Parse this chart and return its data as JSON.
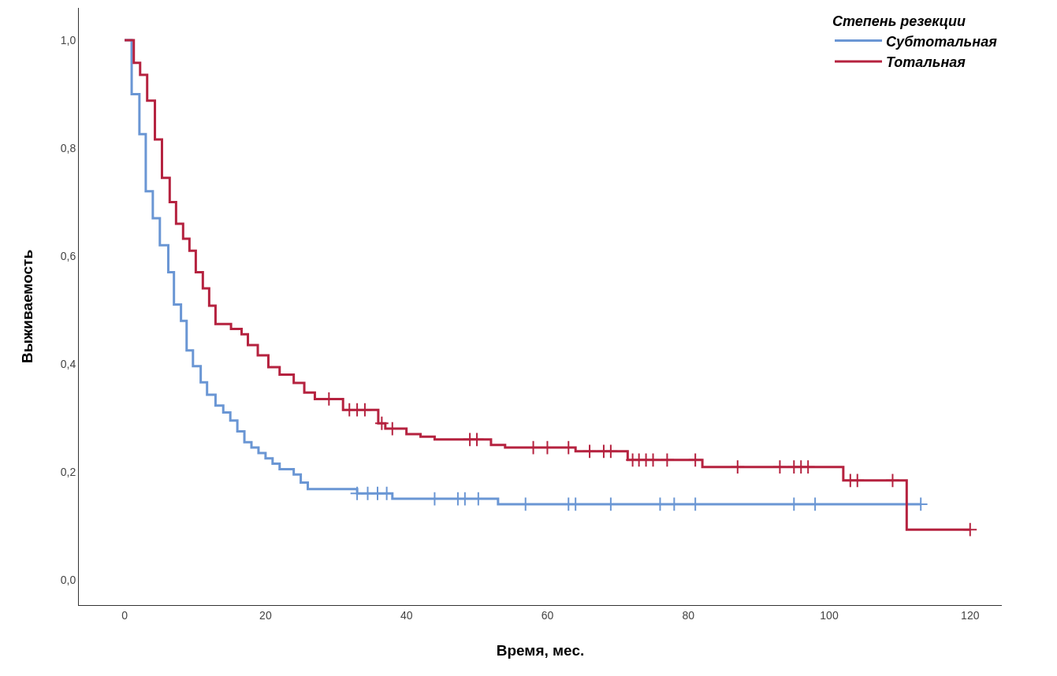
{
  "chart_data": {
    "type": "step",
    "xlabel": "Время, мес.",
    "ylabel": "Выживаемость",
    "legend_title": "Степень резекции",
    "legend": "top right",
    "grid": false,
    "line_style": "solid",
    "xlim": [
      -6.5,
      124.5
    ],
    "xticks": [
      0,
      20,
      40,
      60,
      80,
      100,
      120
    ],
    "ylim": [
      -0.047,
      1.06
    ],
    "yticks": [
      {
        "value": 0,
        "label": "0,0"
      },
      {
        "value": 0.2,
        "label": "0,2"
      },
      {
        "value": 0.4,
        "label": "0,4"
      },
      {
        "value": 0.6,
        "label": "0,6"
      },
      {
        "value": 0.8,
        "label": "0,8"
      },
      {
        "value": 1,
        "label": "1,0"
      }
    ],
    "series": [
      {
        "name": "Субтотальная",
        "color": "#6a96d4",
        "x": [
          0,
          1,
          2.1,
          3,
          4,
          5,
          6.2,
          7,
          8,
          8.8,
          9.7,
          10.8,
          11.7,
          12.9,
          14,
          15,
          16,
          17,
          18,
          19,
          20,
          21,
          22,
          24,
          25,
          26,
          33,
          38,
          53,
          113
        ],
        "values": [
          1,
          0.9,
          0.826,
          0.72,
          0.67,
          0.62,
          0.57,
          0.51,
          0.48,
          0.425,
          0.396,
          0.366,
          0.343,
          0.323,
          0.31,
          0.295,
          0.275,
          0.255,
          0.245,
          0.235,
          0.225,
          0.215,
          0.205,
          0.195,
          0.18,
          0.168,
          0.16,
          0.15,
          0.14,
          0.14
        ]
      },
      {
        "name": "Тотальная",
        "color": "#b5223f",
        "x": [
          0,
          1.3,
          2.2,
          3.2,
          4.3,
          5.3,
          6.4,
          7.3,
          8.3,
          9.2,
          10.1,
          11.1,
          12,
          12.9,
          15.1,
          16.6,
          17.5,
          18.9,
          20.4,
          22,
          24,
          25.5,
          27,
          31,
          36,
          37,
          40,
          42,
          44,
          52,
          54,
          64,
          71.4,
          82,
          102,
          111,
          120
        ],
        "values": [
          1,
          0.958,
          0.936,
          0.888,
          0.816,
          0.745,
          0.7,
          0.66,
          0.632,
          0.61,
          0.57,
          0.54,
          0.508,
          0.474,
          0.465,
          0.455,
          0.435,
          0.416,
          0.394,
          0.38,
          0.365,
          0.347,
          0.335,
          0.315,
          0.29,
          0.28,
          0.27,
          0.265,
          0.26,
          0.25,
          0.245,
          0.238,
          0.222,
          0.209,
          0.184,
          0.093,
          0.093
        ]
      },
      {
        "type": "scatter",
        "marker": "cross",
        "color": "#6a96d4",
        "x": [
          33,
          34.5,
          35.9,
          37.2,
          44,
          47.3,
          48.3,
          50.2,
          56.9,
          63,
          64,
          69,
          76,
          78,
          81,
          95,
          98,
          113
        ],
        "values": [
          0.16,
          0.16,
          0.16,
          0.16,
          0.15,
          0.15,
          0.15,
          0.15,
          0.14,
          0.14,
          0.14,
          0.14,
          0.14,
          0.14,
          0.14,
          0.14,
          0.14,
          0.14
        ]
      },
      {
        "type": "scatter",
        "marker": "cross",
        "color": "#b5223f",
        "x": [
          29,
          31.9,
          33,
          34.1,
          36.5,
          38,
          49,
          50,
          58,
          60,
          63,
          66,
          68,
          69,
          72.1,
          73,
          74,
          75,
          77,
          81,
          87,
          93,
          95,
          96,
          97,
          103,
          104,
          109,
          120
        ],
        "values": [
          0.335,
          0.315,
          0.315,
          0.315,
          0.29,
          0.28,
          0.26,
          0.26,
          0.245,
          0.245,
          0.245,
          0.238,
          0.238,
          0.238,
          0.222,
          0.222,
          0.222,
          0.222,
          0.222,
          0.222,
          0.209,
          0.209,
          0.209,
          0.209,
          0.209,
          0.184,
          0.184,
          0.184,
          0.093
        ]
      }
    ]
  }
}
